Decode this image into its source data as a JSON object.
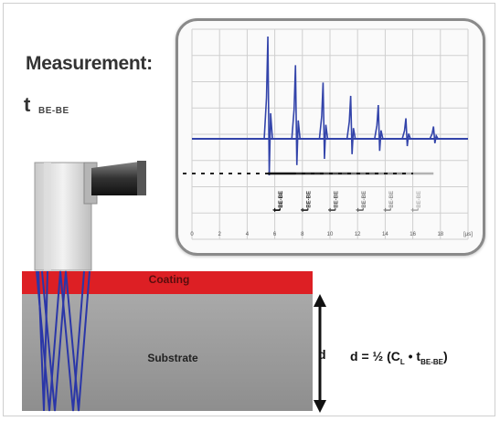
{
  "heading": "Measurement:",
  "symbol": {
    "letter": "t",
    "subscript": "BE-BE"
  },
  "oscilloscope": {
    "axis_ticks": [
      "0",
      "2",
      "4",
      "6",
      "8",
      "10",
      "12",
      "14",
      "16",
      "18",
      "[µs]"
    ],
    "echo_labels": [
      "BE-BE",
      "BE-BE",
      "BE-BE",
      "BE-BE",
      "BE-BE",
      "BE-BE"
    ],
    "echo_times_us": [
      5.5,
      7.5,
      9.5,
      11.5,
      13.5,
      15.5,
      17.5
    ],
    "echo_amplitudes_rel": [
      1.0,
      0.72,
      0.55,
      0.42,
      0.33,
      0.2,
      0.12
    ],
    "trace_color": "#3344aa"
  },
  "layers": {
    "coating": "Coating",
    "substrate": "Substrate"
  },
  "thickness_symbol": "d",
  "formula": {
    "prefix": "d = ½ (C",
    "sub1": "L",
    "mid": " • t",
    "sub2": "BE-BE",
    "suffix": ")"
  },
  "colors": {
    "coating": "#dd1f24",
    "substrate": "#999999",
    "rays": "#2a36a8"
  }
}
